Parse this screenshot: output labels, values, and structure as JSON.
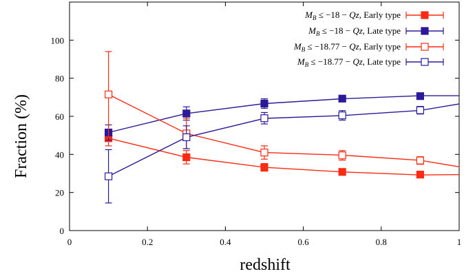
{
  "chart_data": {
    "type": "line",
    "title": "",
    "xlabel": "redshift",
    "ylabel": "Fraction (%)",
    "xlim": [
      0,
      1
    ],
    "ylim": [
      0,
      120
    ],
    "xticks": [
      0,
      0.2,
      0.4,
      0.6,
      0.8,
      1
    ],
    "xtick_labels": [
      "0",
      "0.2",
      "0.4",
      "0.6",
      "0.8",
      "1"
    ],
    "yticks": [
      0,
      20,
      40,
      60,
      80,
      100
    ],
    "ytick_labels": [
      "0",
      "20",
      "40",
      "60",
      "80",
      "100"
    ],
    "grid": false,
    "legend_position": "top-right",
    "series": [
      {
        "name": "M_B ≤ −18 − Qz, Early type",
        "legend_parts": [
          "M",
          "B",
          " ≤ −18 − ",
          "Qz",
          ", Early type"
        ],
        "color": "#ff2a12",
        "marker": "filled-square",
        "x": [
          0.1,
          0.3,
          0.5,
          0.7,
          0.9
        ],
        "y": [
          48.5,
          38.5,
          33.2,
          30.8,
          29.4
        ],
        "err": [
          4,
          3.5,
          2,
          1.5,
          1.5
        ],
        "line_x": [
          0.1,
          0.3,
          0.5,
          0.7,
          0.9,
          1.0
        ],
        "line_y": [
          48.5,
          38.5,
          33.2,
          30.8,
          29.2,
          29.4
        ]
      },
      {
        "name": "M_B ≤ −18 − Qz, Late type",
        "legend_parts": [
          "M",
          "B",
          " ≤ −18 − ",
          "Qz",
          ", Late type"
        ],
        "color": "#2a1a9a",
        "marker": "filled-square",
        "x": [
          0.1,
          0.3,
          0.5,
          0.7,
          0.9
        ],
        "y": [
          51.5,
          61.5,
          66.7,
          69.3,
          70.6
        ],
        "err": [
          4,
          3.5,
          2.5,
          1.5,
          1.5
        ],
        "line_x": [
          0.1,
          0.3,
          0.5,
          0.7,
          0.9,
          1.0
        ],
        "line_y": [
          51.5,
          61.5,
          66.7,
          69.2,
          70.8,
          70.8
        ]
      },
      {
        "name": "M_B ≤ −18.77 − Qz, Early type",
        "legend_parts": [
          "M",
          "B",
          " ≤ −18.77 − ",
          "Qz",
          ", Early type"
        ],
        "color": "#ff2a12",
        "marker": "open-square",
        "x": [
          0.1,
          0.3,
          0.5,
          0.7,
          0.9
        ],
        "y": [
          71.5,
          51,
          41,
          39.5,
          36.8
        ],
        "err": [
          22.5,
          8,
          3.5,
          2.5,
          2
        ],
        "line_x": [
          0.1,
          0.3,
          0.5,
          0.7,
          0.9,
          1.0
        ],
        "line_y": [
          71.5,
          51,
          41,
          39.6,
          36.9,
          33.5
        ]
      },
      {
        "name": "M_B ≤ −18.77 − Qz, Late type",
        "legend_parts": [
          "M",
          "B",
          " ≤ −18.77 − ",
          "Qz",
          ", Late type"
        ],
        "color": "#2a1a9a",
        "marker": "open-square",
        "x": [
          0.1,
          0.3,
          0.5,
          0.7,
          0.9
        ],
        "y": [
          28.5,
          49,
          59,
          60.5,
          63.2
        ],
        "err": [
          14,
          6,
          3,
          2.5,
          2
        ],
        "line_x": [
          0.1,
          0.3,
          0.5,
          0.7,
          0.9,
          1.0
        ],
        "line_y": [
          28.5,
          49,
          58.9,
          60.4,
          63.1,
          66.5
        ]
      }
    ]
  }
}
